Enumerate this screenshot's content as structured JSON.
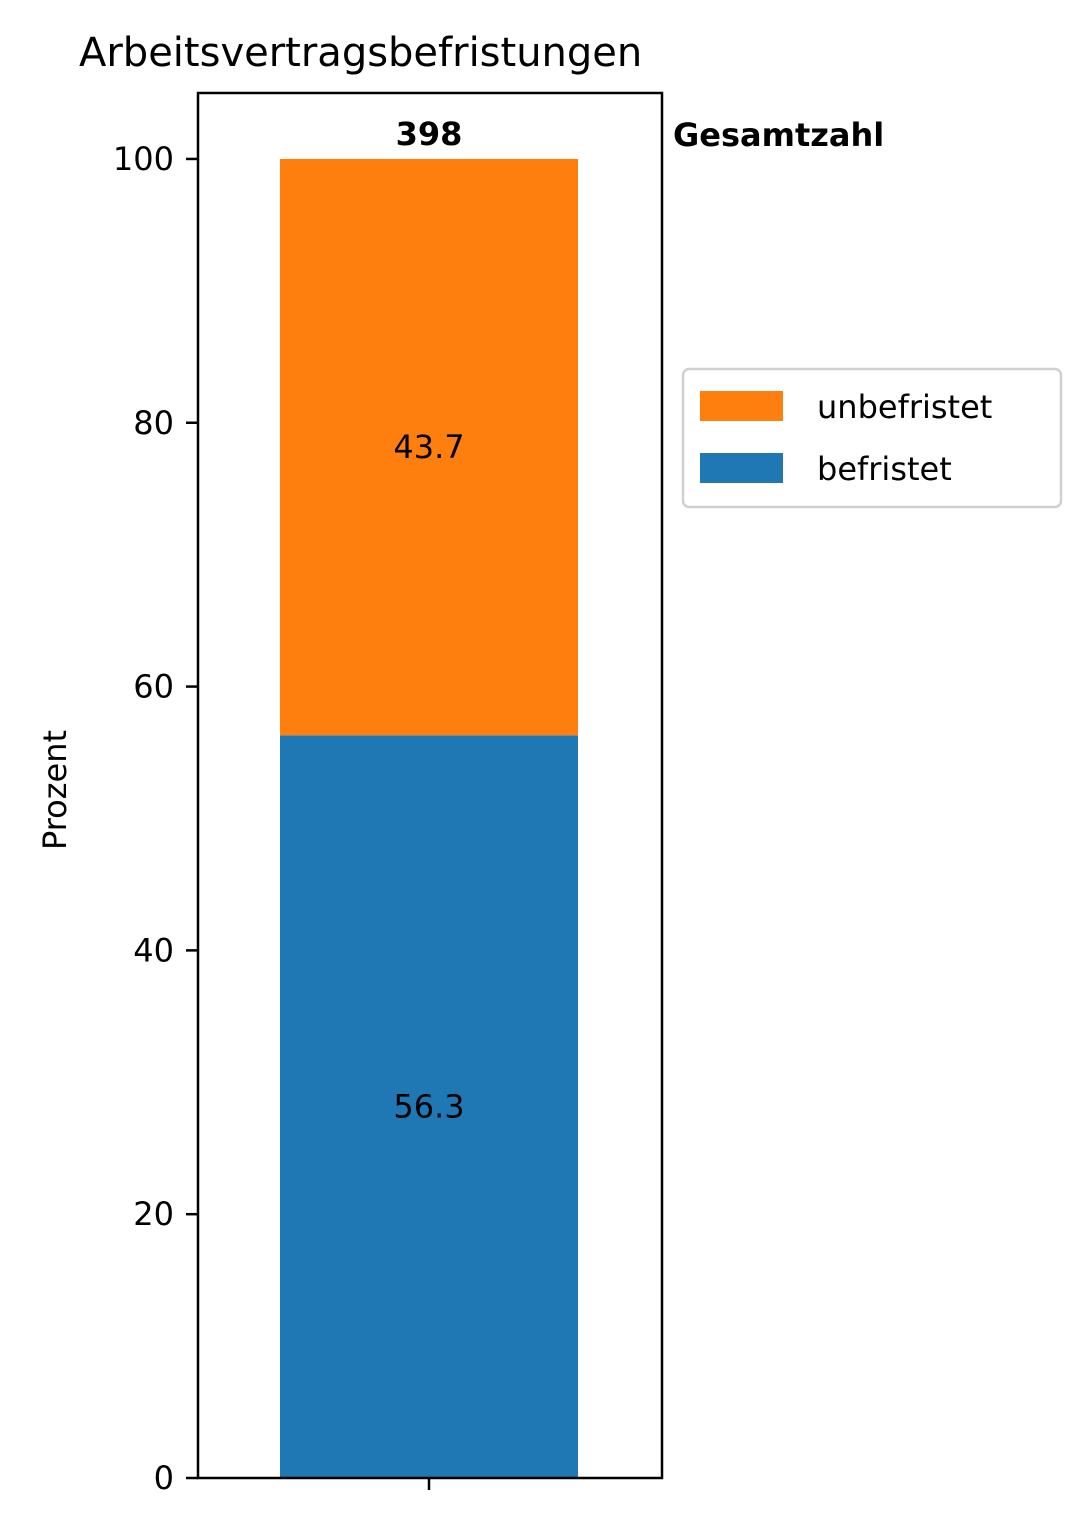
{
  "chart_data": {
    "type": "bar",
    "stacked": true,
    "title": "Arbeitsvertragsbefristungen",
    "xlabel": "",
    "ylabel": "Prozent",
    "ylim": [
      0,
      105
    ],
    "yticks": [
      0,
      20,
      40,
      60,
      80,
      100
    ],
    "categories": [
      ""
    ],
    "series": [
      {
        "name": "befristet",
        "values": [
          56.3
        ],
        "color": "#1f77b4"
      },
      {
        "name": "unbefristet",
        "values": [
          43.7
        ],
        "color": "#ff7f0e"
      }
    ],
    "data_labels": [
      "56.3",
      "43.7"
    ],
    "total": {
      "value": "398",
      "label": "Gesamtzahl"
    },
    "legend": {
      "placement": "right-center",
      "entries": [
        "unbefristet",
        "befristet"
      ]
    },
    "grid": false
  }
}
